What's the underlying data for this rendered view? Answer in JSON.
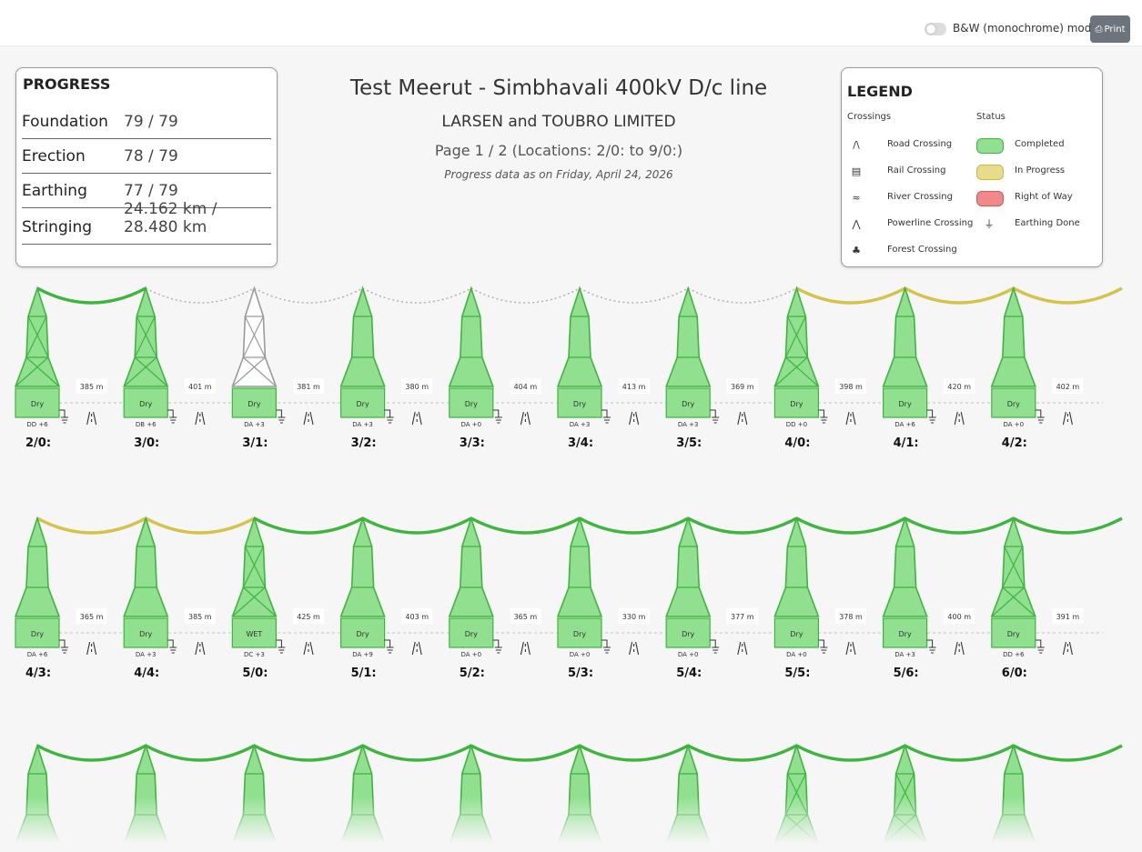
{
  "toolbar": {
    "bw_label": "B&W (monochrome) mode",
    "print_label": "Print",
    "print_icon": "printer-icon"
  },
  "progress": {
    "title": "PROGRESS",
    "rows": [
      {
        "label": "Foundation",
        "value": "79 / 79"
      },
      {
        "label": "Erection",
        "value": "78 / 79"
      },
      {
        "label": "Earthing",
        "value": "77 / 79"
      },
      {
        "label": "Stringing",
        "value": "24.162 km / 28.480 km"
      }
    ]
  },
  "header": {
    "title": "Test Meerut - Simbhavali 400kV D/c line",
    "company": "LARSEN and TOUBRO LIMITED",
    "page": "Page 1 / 2 (Locations: 2/0: to 9/0:)",
    "date": "Progress data as on Friday, April 24, 2026"
  },
  "legend": {
    "title": "LEGEND",
    "crossings_heading": "Crossings",
    "status_heading": "Status",
    "crossings": [
      {
        "label": "Road Crossing",
        "icon": "road-crossing-icon"
      },
      {
        "label": "Rail Crossing",
        "icon": "rail-crossing-icon"
      },
      {
        "label": "River Crossing",
        "icon": "river-crossing-icon"
      },
      {
        "label": "Powerline Crossing",
        "icon": "powerline-crossing-icon"
      },
      {
        "label": "Forest Crossing",
        "icon": "forest-crossing-icon"
      }
    ],
    "status": [
      {
        "label": "Completed",
        "color": "#90e090"
      },
      {
        "label": "In Progress",
        "color": "#e8dc8a"
      },
      {
        "label": "Right of Way",
        "color": "#f08a8a"
      },
      {
        "label": "Earthing Done",
        "icon": "earthing-icon"
      }
    ]
  },
  "colors": {
    "completed_fill": "#90e090",
    "completed_stroke": "#3fb43f",
    "inprogress_wire": "#d4c24a",
    "pending_stroke": "#9a9a9a"
  },
  "rows": [
    {
      "towers": [
        {
          "loc": "2/0:",
          "type": "DD +6",
          "soil": "Dry",
          "status": "foundation",
          "cross": true
        },
        {
          "loc": "3/0:",
          "type": "DB +6",
          "soil": "Dry",
          "status": "foundation",
          "cross": true
        },
        {
          "loc": "3/1:",
          "type": "DA +3",
          "soil": "Dry",
          "status": "pending",
          "cross": true
        },
        {
          "loc": "3/2:",
          "type": "DA +3",
          "soil": "Dry",
          "status": "completed",
          "cross": false
        },
        {
          "loc": "3/3:",
          "type": "DA +0",
          "soil": "Dry",
          "status": "completed",
          "cross": false
        },
        {
          "loc": "3/4:",
          "type": "DA +3",
          "soil": "Dry",
          "status": "completed",
          "cross": false
        },
        {
          "loc": "3/5:",
          "type": "DA +3",
          "soil": "Dry",
          "status": "completed",
          "cross": false
        },
        {
          "loc": "4/0:",
          "type": "DD +0",
          "soil": "Dry",
          "status": "completed",
          "cross": true
        },
        {
          "loc": "4/1:",
          "type": "DA +6",
          "soil": "Dry",
          "status": "completed",
          "cross": false
        },
        {
          "loc": "4/2:",
          "type": "DA +0",
          "soil": "Dry",
          "status": "completed",
          "cross": false
        }
      ],
      "spans": [
        "385 m",
        "401 m",
        "381 m",
        "380 m",
        "404 m",
        "413 m",
        "369 m",
        "398 m",
        "420 m",
        "402 m"
      ],
      "wires": [
        "completed",
        "pending",
        "pending",
        "pending",
        "pending",
        "pending",
        "pending",
        "inprogress",
        "inprogress",
        "inprogress"
      ]
    },
    {
      "towers": [
        {
          "loc": "4/3:",
          "type": "DA +6",
          "soil": "Dry",
          "status": "completed",
          "cross": false
        },
        {
          "loc": "4/4:",
          "type": "DA +3",
          "soil": "Dry",
          "status": "completed",
          "cross": false
        },
        {
          "loc": "5/0:",
          "type": "DC +3",
          "soil": "WET",
          "status": "completed",
          "cross": true
        },
        {
          "loc": "5/1:",
          "type": "DA +9",
          "soil": "Dry",
          "status": "completed",
          "cross": false
        },
        {
          "loc": "5/2:",
          "type": "DA +0",
          "soil": "Dry",
          "status": "completed",
          "cross": false
        },
        {
          "loc": "5/3:",
          "type": "DA +0",
          "soil": "Dry",
          "status": "completed",
          "cross": false
        },
        {
          "loc": "5/4:",
          "type": "DA +0",
          "soil": "Dry",
          "status": "completed",
          "cross": false
        },
        {
          "loc": "5/5:",
          "type": "DA +0",
          "soil": "Dry",
          "status": "completed",
          "cross": false
        },
        {
          "loc": "5/6:",
          "type": "DA +3",
          "soil": "Dry",
          "status": "completed",
          "cross": false
        },
        {
          "loc": "6/0:",
          "type": "DD +6",
          "soil": "Dry",
          "status": "completed",
          "cross": true
        }
      ],
      "spans": [
        "365 m",
        "385 m",
        "425 m",
        "403 m",
        "365 m",
        "330 m",
        "377 m",
        "378 m",
        "400 m",
        "391 m"
      ],
      "wires": [
        "inprogress",
        "inprogress",
        "completed",
        "completed",
        "completed",
        "completed",
        "completed",
        "completed",
        "completed",
        "completed"
      ]
    },
    {
      "towers": [
        {
          "status": "completed",
          "cross": false
        },
        {
          "status": "completed",
          "cross": false
        },
        {
          "status": "completed",
          "cross": false
        },
        {
          "status": "completed",
          "cross": false
        },
        {
          "status": "completed",
          "cross": false
        },
        {
          "status": "completed",
          "cross": false
        },
        {
          "status": "completed",
          "cross": false
        },
        {
          "status": "completed",
          "cross": true
        },
        {
          "status": "completed",
          "cross": true
        },
        {
          "status": "completed",
          "cross": false
        }
      ],
      "wires": [
        "completed",
        "completed",
        "completed",
        "completed",
        "completed",
        "completed",
        "completed",
        "completed",
        "completed",
        "completed"
      ]
    }
  ]
}
